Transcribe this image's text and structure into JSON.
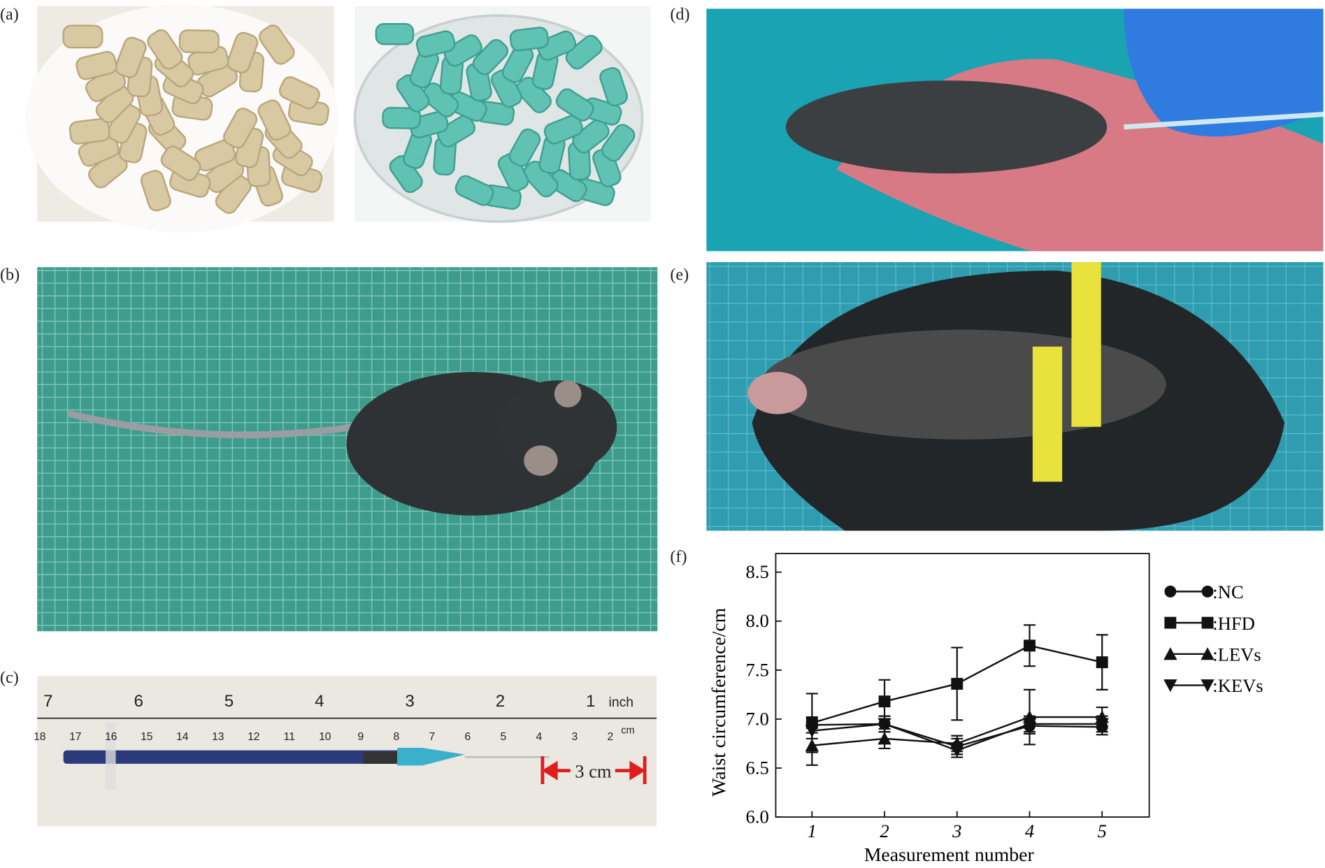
{
  "panels": {
    "labels": [
      "(a)",
      "(b)",
      "(c)",
      "(d)",
      "(e)",
      "(f)"
    ]
  },
  "ruler": {
    "inch_numbers": [
      "7",
      "6",
      "5",
      "4",
      "3",
      "2",
      "1"
    ],
    "inch_unit": "inch",
    "cm_numbers": [
      "18",
      "17",
      "16",
      "15",
      "14",
      "13",
      "12",
      "11",
      "10",
      "9",
      "8",
      "7",
      "6",
      "5",
      "4",
      "3",
      "2"
    ],
    "cm_unit": "cm",
    "annotation": "3 cm"
  },
  "chart_data": {
    "type": "line",
    "xlabel": "Measurement number",
    "ylabel": "Waist circumference/cm",
    "x": [
      1,
      2,
      3,
      4,
      5
    ],
    "xlim": [
      0.5,
      5.65
    ],
    "ylim": [
      6.0,
      8.69
    ],
    "xticks": [
      1,
      2,
      3,
      4,
      5
    ],
    "yticks": [
      {
        "value": 6,
        "label": "6.0"
      },
      {
        "value": 6.5,
        "label": "6.5"
      },
      {
        "value": 7,
        "label": "7.0"
      },
      {
        "value": 7.5,
        "label": "7.5"
      },
      {
        "value": 8,
        "label": "8.0"
      },
      {
        "value": 8.5,
        "label": "8.5"
      }
    ],
    "series": [
      {
        "name": ":NC",
        "marker": "circle",
        "color": "#111111",
        "values": [
          6.94,
          6.95,
          6.72,
          6.93,
          6.92
        ],
        "errors": [
          0.08,
          0.08,
          0.08,
          0.08,
          0.08
        ]
      },
      {
        "name": ":HFD",
        "marker": "square",
        "color": "#111111",
        "values": [
          6.96,
          7.18,
          7.36,
          7.75,
          7.58
        ],
        "errors": [
          0.3,
          0.22,
          0.37,
          0.21,
          0.28
        ]
      },
      {
        "name": ":LEVs",
        "marker": "triangle-up",
        "color": "#111111",
        "values": [
          6.73,
          6.8,
          6.75,
          7.02,
          7.02
        ],
        "errors": [
          0.2,
          0.1,
          0.08,
          0.28,
          0.1
        ]
      },
      {
        "name": ":KEVs",
        "marker": "triangle-down",
        "color": "#111111",
        "values": [
          6.88,
          6.95,
          6.68,
          6.95,
          6.95
        ],
        "errors": [
          0.08,
          0.08,
          0.07,
          0.08,
          0.08
        ]
      }
    ]
  }
}
